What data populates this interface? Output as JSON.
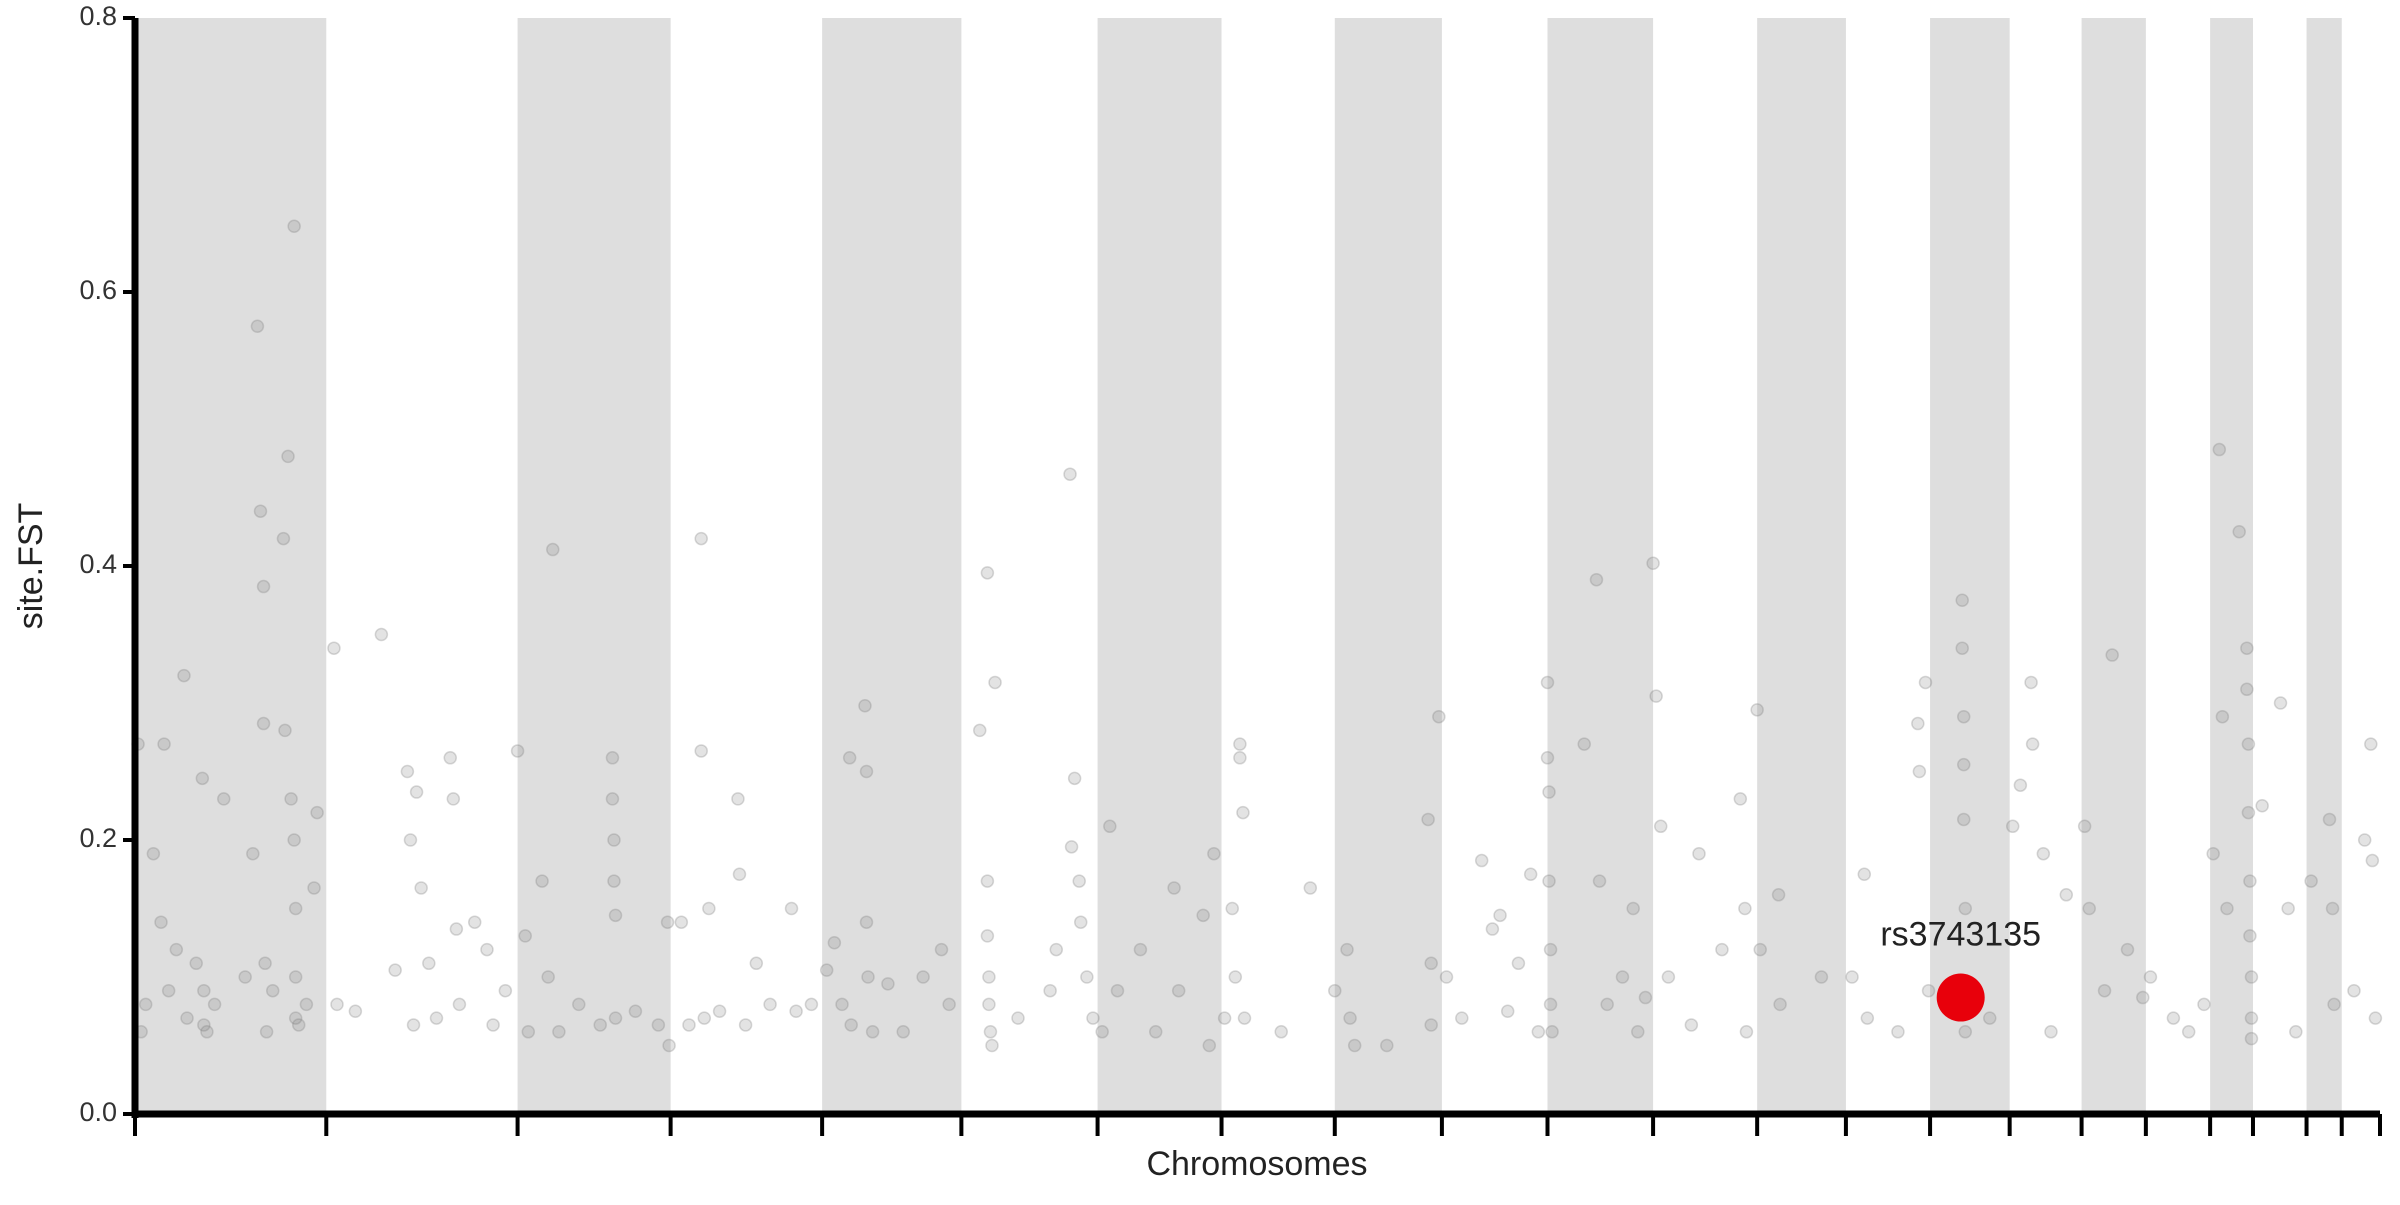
{
  "chart_data": {
    "type": "scatter",
    "x_label": "Chromosomes",
    "y_label": "site.FST",
    "xlim": [
      0,
      1467
    ],
    "ylim": [
      0,
      0.8
    ],
    "xticks": [
      0,
      125,
      250,
      350,
      449,
      540,
      629,
      710,
      784,
      854,
      923,
      992,
      1060,
      1118,
      1173,
      1225,
      1272,
      1314,
      1356,
      1384,
      1419,
      1442,
      1467
    ],
    "yticks": [
      {
        "value": 0,
        "label": "0.0"
      },
      0.2,
      0.4,
      0.6,
      0.8
    ],
    "band_color": "#dedede",
    "series": [
      {
        "color": "#808080",
        "x": [
          2,
          4,
          7,
          12,
          17,
          19,
          22,
          27,
          32,
          34,
          40,
          44,
          45,
          45,
          47,
          52,
          58,
          72,
          77,
          80,
          82,
          84,
          84,
          85,
          86,
          90,
          97,
          98,
          100,
          102,
          104,
          104,
          105,
          105,
          105,
          107,
          112,
          117,
          119,
          130,
          132,
          144,
          161,
          170,
          178,
          180,
          182,
          184,
          187,
          192,
          197,
          206,
          208,
          210,
          212,
          222,
          230,
          234,
          242,
          250,
          255,
          257,
          266,
          270,
          273,
          277,
          290,
          304,
          312,
          312,
          313,
          313,
          314,
          314,
          327,
          342,
          348,
          349,
          357,
          362,
          370,
          370,
          372,
          375,
          382,
          394,
          395,
          399,
          406,
          415,
          429,
          432,
          442,
          452,
          457,
          462,
          467,
          468,
          477,
          478,
          478,
          479,
          482,
          492,
          502,
          515,
          527,
          532,
          552,
          557,
          557,
          557,
          558,
          558,
          559,
          560,
          562,
          577,
          598,
          602,
          611,
          612,
          614,
          617,
          618,
          622,
          626,
          632,
          637,
          642,
          657,
          667,
          679,
          682,
          698,
          702,
          705,
          712,
          717,
          719,
          722,
          722,
          724,
          725,
          749,
          768,
          784,
          792,
          794,
          797,
          818,
          845,
          847,
          847,
          852,
          857,
          867,
          880,
          887,
          892,
          897,
          904,
          912,
          917,
          923,
          923,
          924,
          924,
          925,
          925,
          926,
          947,
          955,
          957,
          962,
          972,
          979,
          982,
          987,
          992,
          994,
          997,
          1002,
          1017,
          1022,
          1037,
          1049,
          1052,
          1053,
          1060,
          1062,
          1074,
          1075,
          1102,
          1122,
          1130,
          1132,
          1152,
          1165,
          1166,
          1170,
          1172,
          1194,
          1194,
          1195,
          1195,
          1195,
          1196,
          1196,
          1212,
          1227,
          1232,
          1239,
          1240,
          1247,
          1252,
          1262,
          1274,
          1277,
          1287,
          1292,
          1302,
          1312,
          1317,
          1332,
          1342,
          1352,
          1358,
          1362,
          1364,
          1367,
          1375,
          1380,
          1380,
          1381,
          1381,
          1382,
          1382,
          1383,
          1383,
          1383,
          1390,
          1402,
          1407,
          1412,
          1422,
          1434,
          1436,
          1437,
          1450,
          1457,
          1461,
          1462,
          1464
        ],
        "values": [
          0.27,
          0.06,
          0.08,
          0.19,
          0.14,
          0.27,
          0.09,
          0.12,
          0.32,
          0.07,
          0.11,
          0.245,
          0.09,
          0.065,
          0.06,
          0.08,
          0.23,
          0.1,
          0.19,
          0.575,
          0.44,
          0.385,
          0.285,
          0.11,
          0.06,
          0.09,
          0.42,
          0.28,
          0.48,
          0.23,
          0.648,
          0.2,
          0.15,
          0.1,
          0.07,
          0.065,
          0.08,
          0.165,
          0.22,
          0.34,
          0.08,
          0.075,
          0.35,
          0.105,
          0.25,
          0.2,
          0.065,
          0.235,
          0.165,
          0.11,
          0.07,
          0.26,
          0.23,
          0.135,
          0.08,
          0.14,
          0.12,
          0.065,
          0.09,
          0.265,
          0.13,
          0.06,
          0.17,
          0.1,
          0.412,
          0.06,
          0.08,
          0.065,
          0.26,
          0.23,
          0.2,
          0.17,
          0.145,
          0.07,
          0.075,
          0.065,
          0.14,
          0.05,
          0.14,
          0.065,
          0.42,
          0.265,
          0.07,
          0.15,
          0.075,
          0.23,
          0.175,
          0.065,
          0.11,
          0.08,
          0.15,
          0.075,
          0.08,
          0.105,
          0.125,
          0.08,
          0.26,
          0.065,
          0.298,
          0.25,
          0.14,
          0.1,
          0.06,
          0.095,
          0.06,
          0.1,
          0.12,
          0.08,
          0.28,
          0.395,
          0.17,
          0.13,
          0.1,
          0.08,
          0.06,
          0.05,
          0.315,
          0.07,
          0.09,
          0.12,
          0.467,
          0.195,
          0.245,
          0.17,
          0.14,
          0.1,
          0.07,
          0.06,
          0.21,
          0.09,
          0.12,
          0.06,
          0.165,
          0.09,
          0.145,
          0.05,
          0.19,
          0.07,
          0.15,
          0.1,
          0.27,
          0.26,
          0.22,
          0.07,
          0.06,
          0.165,
          0.09,
          0.12,
          0.07,
          0.05,
          0.05,
          0.215,
          0.11,
          0.065,
          0.29,
          0.1,
          0.07,
          0.185,
          0.135,
          0.145,
          0.075,
          0.11,
          0.175,
          0.06,
          0.315,
          0.26,
          0.235,
          0.17,
          0.12,
          0.08,
          0.06,
          0.27,
          0.39,
          0.17,
          0.08,
          0.1,
          0.15,
          0.06,
          0.085,
          0.402,
          0.305,
          0.21,
          0.1,
          0.065,
          0.19,
          0.12,
          0.23,
          0.15,
          0.06,
          0.295,
          0.12,
          0.16,
          0.08,
          0.1,
          0.1,
          0.175,
          0.07,
          0.06,
          0.285,
          0.25,
          0.315,
          0.09,
          0.375,
          0.34,
          0.29,
          0.255,
          0.215,
          0.15,
          0.06,
          0.07,
          0.21,
          0.24,
          0.315,
          0.27,
          0.19,
          0.06,
          0.16,
          0.21,
          0.15,
          0.09,
          0.335,
          0.12,
          0.085,
          0.1,
          0.07,
          0.06,
          0.08,
          0.19,
          0.485,
          0.29,
          0.15,
          0.425,
          0.34,
          0.31,
          0.27,
          0.22,
          0.17,
          0.13,
          0.1,
          0.07,
          0.055,
          0.225,
          0.3,
          0.15,
          0.06,
          0.17,
          0.215,
          0.15,
          0.08,
          0.09,
          0.2,
          0.27,
          0.185,
          0.07
        ]
      }
    ],
    "highlight": {
      "label": "rs3743135",
      "x": 1193,
      "value": 0.085,
      "color": "#e8000b"
    }
  }
}
